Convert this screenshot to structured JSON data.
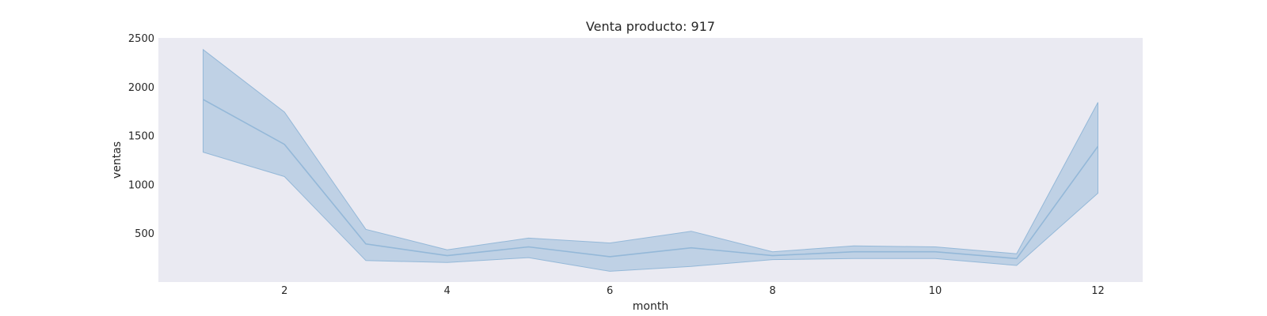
{
  "chart_data": {
    "type": "line",
    "title": "Venta producto: 917",
    "xlabel": "month",
    "ylabel": "ventas",
    "x": [
      1,
      2,
      3,
      4,
      5,
      6,
      7,
      8,
      9,
      10,
      11,
      12
    ],
    "xlim": [
      0.45,
      12.55
    ],
    "ylim": [
      0,
      2500
    ],
    "xticks": [
      "2",
      "4",
      "6",
      "8",
      "10",
      "12"
    ],
    "yticks": [
      "500",
      "1000",
      "1500",
      "2000",
      "2500"
    ],
    "grid": false,
    "series": [
      {
        "mean": [
          1870,
          1410,
          390,
          270,
          360,
          260,
          350,
          270,
          310,
          310,
          240,
          1390
        ],
        "ci_low": [
          1330,
          1080,
          220,
          200,
          250,
          110,
          160,
          230,
          240,
          240,
          170,
          910
        ],
        "ci_high": [
          2380,
          1740,
          540,
          330,
          450,
          400,
          520,
          310,
          370,
          360,
          290,
          1840
        ]
      }
    ],
    "colors": {
      "plot_background": "#EAEAF2",
      "line": "#94B8D8",
      "band": "#94B8D8"
    }
  }
}
